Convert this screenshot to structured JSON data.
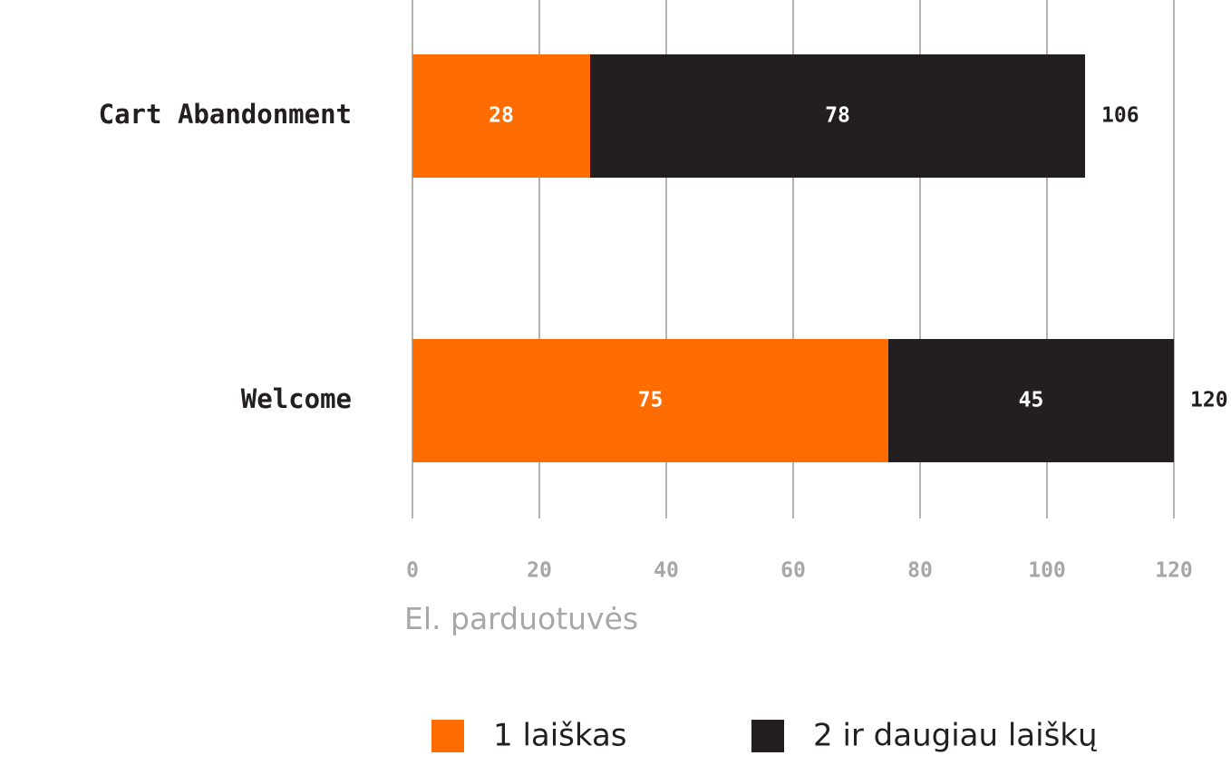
{
  "chart_data": {
    "type": "bar",
    "orientation": "horizontal",
    "stacked": true,
    "categories": [
      "Cart Abandonment",
      "Welcome"
    ],
    "series": [
      {
        "name": "1 laiškas",
        "values": [
          28,
          75
        ],
        "color": "#ff6d00"
      },
      {
        "name": "2 ir daugiau laiškų",
        "values": [
          78,
          45
        ],
        "color": "#231f20"
      }
    ],
    "totals": [
      106,
      120
    ],
    "xlabel": "El. parduotuvės",
    "ylabel": "",
    "xlim": [
      0,
      120
    ],
    "xticks": [
      0,
      20,
      40,
      60,
      80,
      100,
      120
    ],
    "grid": true,
    "legend": "bottom"
  }
}
